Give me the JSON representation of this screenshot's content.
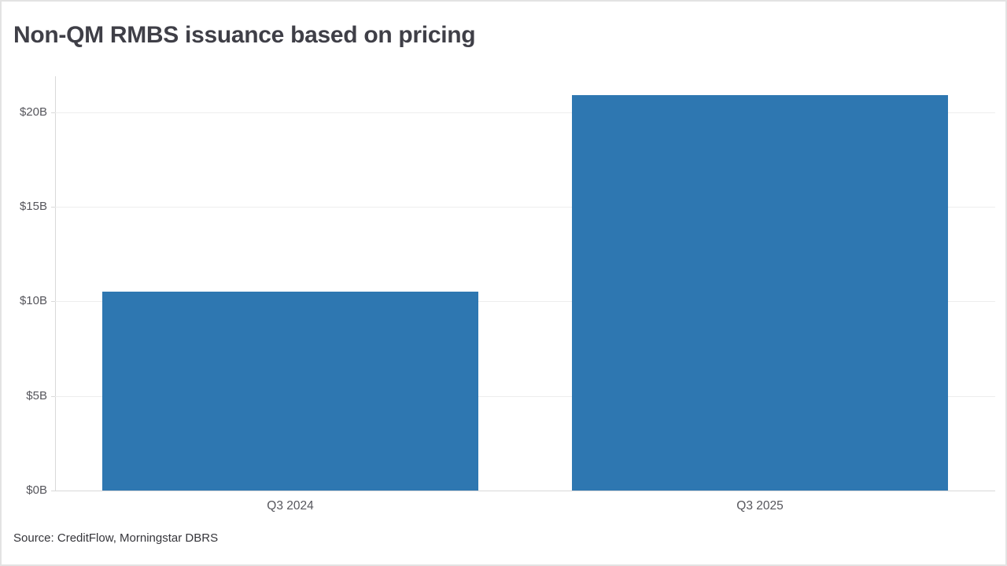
{
  "chart": {
    "title": "Non-QM RMBS issuance based on pricing",
    "source": "Source: CreditFlow, Morningstar DBRS"
  },
  "chart_data": {
    "type": "bar",
    "title": "Non-QM RMBS issuance based on pricing",
    "categories": [
      "Q3 2024",
      "Q3 2025"
    ],
    "values": [
      10.5,
      20.9
    ],
    "xlabel": "",
    "ylabel": "",
    "ylim": [
      0,
      21.9
    ],
    "yticks": [
      0,
      5,
      10,
      15,
      20
    ],
    "ytick_labels": [
      "$0B",
      "$5B",
      "$10B",
      "$15B",
      "$20B"
    ],
    "grid": true,
    "legend": false,
    "source": "Source: CreditFlow, Morningstar DBRS"
  },
  "colors": {
    "bar": "#2e77b1",
    "grid": "#ededed",
    "axis": "#d9d9d9",
    "title": "#3f3f47",
    "tick_label": "#56565c",
    "source_text": "#35353a",
    "border": "#e3e3e3",
    "background": "#ffffff"
  }
}
